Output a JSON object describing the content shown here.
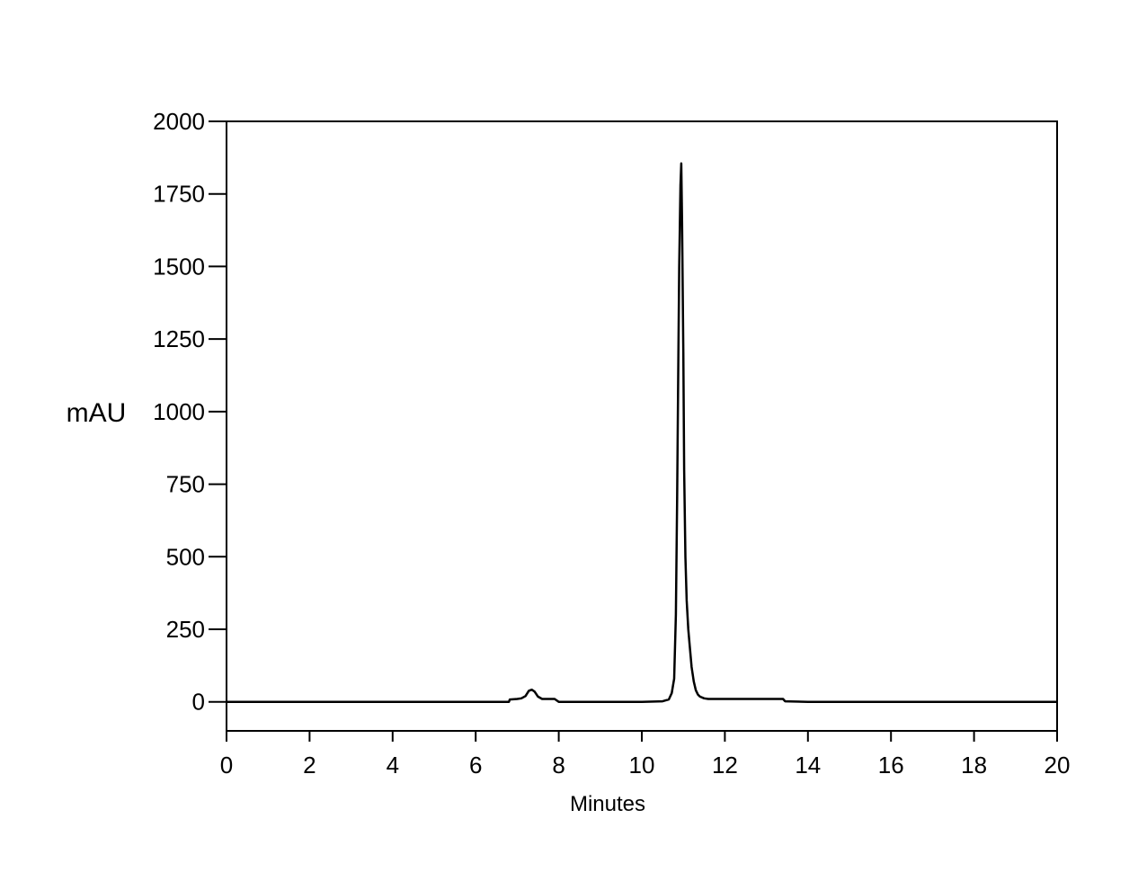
{
  "chart_data": {
    "type": "line",
    "title": "",
    "xlabel": "Minutes",
    "ylabel": "mAU",
    "xlim": [
      0,
      20
    ],
    "ylim": [
      -100,
      2000
    ],
    "xticks": [
      0,
      2,
      4,
      6,
      8,
      10,
      12,
      14,
      16,
      18,
      20
    ],
    "yticks": [
      0,
      250,
      500,
      750,
      1000,
      1250,
      1500,
      1750,
      2000
    ],
    "grid": false,
    "legend": "none",
    "line_color": "#000000",
    "series": [
      {
        "x": [
          0,
          6.8,
          6.82,
          7.0,
          7.1,
          7.2,
          7.28,
          7.35,
          7.42,
          7.5,
          7.6,
          7.7,
          7.9,
          7.95,
          8.0,
          10.0,
          10.5,
          10.65,
          10.72,
          10.78,
          10.82,
          10.85,
          10.88,
          10.9,
          10.93,
          10.95,
          10.97,
          11.0,
          11.02,
          11.05,
          11.08,
          11.12,
          11.15,
          11.2,
          11.25,
          11.3,
          11.35,
          11.4,
          11.5,
          11.6,
          12.0,
          13.0,
          13.4,
          13.45,
          14.0,
          20.0
        ],
        "y": [
          0,
          0,
          8,
          10,
          12,
          20,
          38,
          42,
          35,
          18,
          10,
          10,
          10,
          5,
          0,
          0,
          2,
          8,
          30,
          80,
          300,
          700,
          1200,
          1500,
          1780,
          1855,
          1650,
          1200,
          800,
          500,
          350,
          250,
          200,
          120,
          70,
          40,
          25,
          18,
          12,
          10,
          10,
          10,
          10,
          2,
          0,
          0
        ]
      }
    ]
  }
}
